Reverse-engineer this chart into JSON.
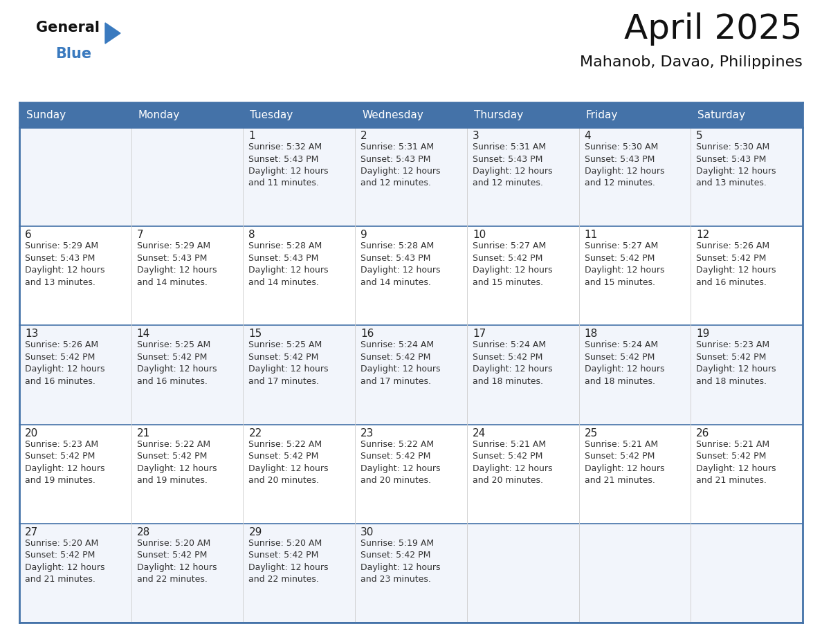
{
  "title": "April 2025",
  "subtitle": "Mahanob, Davao, Philippines",
  "header_bg": "#4472a8",
  "header_text_color": "#ffffff",
  "border_color": "#4472a8",
  "row_border_color": "#4472a8",
  "cell_border_color": "#cccccc",
  "bg_odd": "#f2f5fb",
  "bg_even": "#ffffff",
  "text_color": "#222222",
  "days_of_week": [
    "Sunday",
    "Monday",
    "Tuesday",
    "Wednesday",
    "Thursday",
    "Friday",
    "Saturday"
  ],
  "weeks": [
    [
      {
        "day": "",
        "info": ""
      },
      {
        "day": "",
        "info": ""
      },
      {
        "day": "1",
        "info": "Sunrise: 5:32 AM\nSunset: 5:43 PM\nDaylight: 12 hours\nand 11 minutes."
      },
      {
        "day": "2",
        "info": "Sunrise: 5:31 AM\nSunset: 5:43 PM\nDaylight: 12 hours\nand 12 minutes."
      },
      {
        "day": "3",
        "info": "Sunrise: 5:31 AM\nSunset: 5:43 PM\nDaylight: 12 hours\nand 12 minutes."
      },
      {
        "day": "4",
        "info": "Sunrise: 5:30 AM\nSunset: 5:43 PM\nDaylight: 12 hours\nand 12 minutes."
      },
      {
        "day": "5",
        "info": "Sunrise: 5:30 AM\nSunset: 5:43 PM\nDaylight: 12 hours\nand 13 minutes."
      }
    ],
    [
      {
        "day": "6",
        "info": "Sunrise: 5:29 AM\nSunset: 5:43 PM\nDaylight: 12 hours\nand 13 minutes."
      },
      {
        "day": "7",
        "info": "Sunrise: 5:29 AM\nSunset: 5:43 PM\nDaylight: 12 hours\nand 14 minutes."
      },
      {
        "day": "8",
        "info": "Sunrise: 5:28 AM\nSunset: 5:43 PM\nDaylight: 12 hours\nand 14 minutes."
      },
      {
        "day": "9",
        "info": "Sunrise: 5:28 AM\nSunset: 5:43 PM\nDaylight: 12 hours\nand 14 minutes."
      },
      {
        "day": "10",
        "info": "Sunrise: 5:27 AM\nSunset: 5:42 PM\nDaylight: 12 hours\nand 15 minutes."
      },
      {
        "day": "11",
        "info": "Sunrise: 5:27 AM\nSunset: 5:42 PM\nDaylight: 12 hours\nand 15 minutes."
      },
      {
        "day": "12",
        "info": "Sunrise: 5:26 AM\nSunset: 5:42 PM\nDaylight: 12 hours\nand 16 minutes."
      }
    ],
    [
      {
        "day": "13",
        "info": "Sunrise: 5:26 AM\nSunset: 5:42 PM\nDaylight: 12 hours\nand 16 minutes."
      },
      {
        "day": "14",
        "info": "Sunrise: 5:25 AM\nSunset: 5:42 PM\nDaylight: 12 hours\nand 16 minutes."
      },
      {
        "day": "15",
        "info": "Sunrise: 5:25 AM\nSunset: 5:42 PM\nDaylight: 12 hours\nand 17 minutes."
      },
      {
        "day": "16",
        "info": "Sunrise: 5:24 AM\nSunset: 5:42 PM\nDaylight: 12 hours\nand 17 minutes."
      },
      {
        "day": "17",
        "info": "Sunrise: 5:24 AM\nSunset: 5:42 PM\nDaylight: 12 hours\nand 18 minutes."
      },
      {
        "day": "18",
        "info": "Sunrise: 5:24 AM\nSunset: 5:42 PM\nDaylight: 12 hours\nand 18 minutes."
      },
      {
        "day": "19",
        "info": "Sunrise: 5:23 AM\nSunset: 5:42 PM\nDaylight: 12 hours\nand 18 minutes."
      }
    ],
    [
      {
        "day": "20",
        "info": "Sunrise: 5:23 AM\nSunset: 5:42 PM\nDaylight: 12 hours\nand 19 minutes."
      },
      {
        "day": "21",
        "info": "Sunrise: 5:22 AM\nSunset: 5:42 PM\nDaylight: 12 hours\nand 19 minutes."
      },
      {
        "day": "22",
        "info": "Sunrise: 5:22 AM\nSunset: 5:42 PM\nDaylight: 12 hours\nand 20 minutes."
      },
      {
        "day": "23",
        "info": "Sunrise: 5:22 AM\nSunset: 5:42 PM\nDaylight: 12 hours\nand 20 minutes."
      },
      {
        "day": "24",
        "info": "Sunrise: 5:21 AM\nSunset: 5:42 PM\nDaylight: 12 hours\nand 20 minutes."
      },
      {
        "day": "25",
        "info": "Sunrise: 5:21 AM\nSunset: 5:42 PM\nDaylight: 12 hours\nand 21 minutes."
      },
      {
        "day": "26",
        "info": "Sunrise: 5:21 AM\nSunset: 5:42 PM\nDaylight: 12 hours\nand 21 minutes."
      }
    ],
    [
      {
        "day": "27",
        "info": "Sunrise: 5:20 AM\nSunset: 5:42 PM\nDaylight: 12 hours\nand 21 minutes."
      },
      {
        "day": "28",
        "info": "Sunrise: 5:20 AM\nSunset: 5:42 PM\nDaylight: 12 hours\nand 22 minutes."
      },
      {
        "day": "29",
        "info": "Sunrise: 5:20 AM\nSunset: 5:42 PM\nDaylight: 12 hours\nand 22 minutes."
      },
      {
        "day": "30",
        "info": "Sunrise: 5:19 AM\nSunset: 5:42 PM\nDaylight: 12 hours\nand 23 minutes."
      },
      {
        "day": "",
        "info": ""
      },
      {
        "day": "",
        "info": ""
      },
      {
        "day": "",
        "info": ""
      }
    ]
  ],
  "fig_width": 11.88,
  "fig_height": 9.18,
  "dpi": 100,
  "title_fontsize": 36,
  "subtitle_fontsize": 16,
  "header_fontsize": 11,
  "day_num_fontsize": 11,
  "cell_text_fontsize": 9
}
